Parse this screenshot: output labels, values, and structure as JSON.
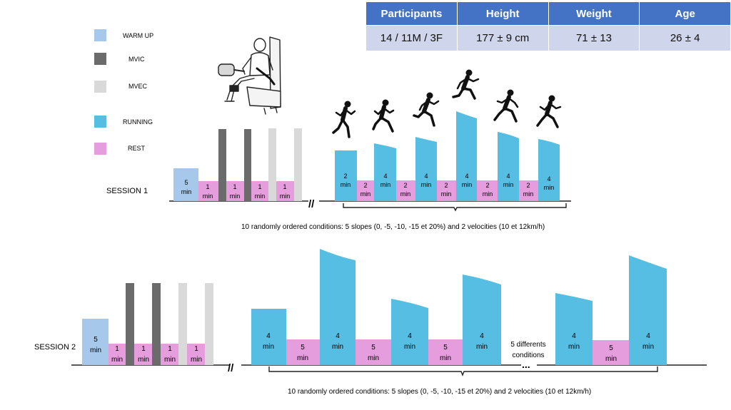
{
  "table": {
    "headers": [
      "Participants",
      "Height",
      "Weight",
      "Age"
    ],
    "values": [
      "14 / 11M / 3F",
      "177 ± 9 cm",
      "71 ± 13",
      "26 ± 4"
    ]
  },
  "legend": [
    {
      "label": "WARM UP",
      "color": "#a6c8ea"
    },
    {
      "label": "MVIC",
      "color": "#6b6b6b"
    },
    {
      "label": "MVEC",
      "color": "#d9d9d9"
    },
    {
      "label": "RUNNING",
      "color": "#56bde3"
    },
    {
      "label": "REST",
      "color": "#e59ddd"
    }
  ],
  "session1": {
    "label": "SESSION 1",
    "warmup": {
      "l1": "5",
      "l2": "min"
    },
    "rest_short": {
      "l1": "1",
      "l2": "min"
    },
    "run_blocks": [
      {
        "l1": "2",
        "l2": "min"
      },
      {
        "l1": "4",
        "l2": "min"
      },
      {
        "l1": "4",
        "l2": "min"
      },
      {
        "l1": "4",
        "l2": "min"
      },
      {
        "l1": "4",
        "l2": "min"
      },
      {
        "l1": "4",
        "l2": "min"
      }
    ],
    "rest_blocks": [
      {
        "l1": "2",
        "l2": "min"
      },
      {
        "l1": "2",
        "l2": "min"
      },
      {
        "l1": "2",
        "l2": "min"
      },
      {
        "l1": "2",
        "l2": "min"
      },
      {
        "l1": "2",
        "l2": "min"
      }
    ],
    "caption": "10 randomly ordered conditions: 5 slopes (0, -5, -10, -15 et 20%) and 2 velocities (10 et 12km/h)"
  },
  "session2": {
    "label": "SESSION 2",
    "warmup": {
      "l1": "5",
      "l2": "min"
    },
    "rest_short": {
      "l1": "1",
      "l2": "min"
    },
    "run_blocks": [
      {
        "l1": "4",
        "l2": "min"
      },
      {
        "l1": "4",
        "l2": "min"
      },
      {
        "l1": "4",
        "l2": "min"
      },
      {
        "l1": "4",
        "l2": "min"
      },
      {
        "l1": "4",
        "l2": "min"
      },
      {
        "l1": "4",
        "l2": "min"
      }
    ],
    "rest_blocks": [
      {
        "l1": "5",
        "l2": "min"
      },
      {
        "l1": "5",
        "l2": "min"
      },
      {
        "l1": "5",
        "l2": "min"
      },
      {
        "l1": "5",
        "l2": "min"
      }
    ],
    "differents": {
      "l1": "5 differents",
      "l2": "conditions"
    },
    "ellipsis": "...",
    "caption": "10 randomly ordered conditions: 5 slopes (0, -5, -10, -15 et 20%) and 2 velocities (10 et 12km/h)"
  },
  "break_mark": "//"
}
